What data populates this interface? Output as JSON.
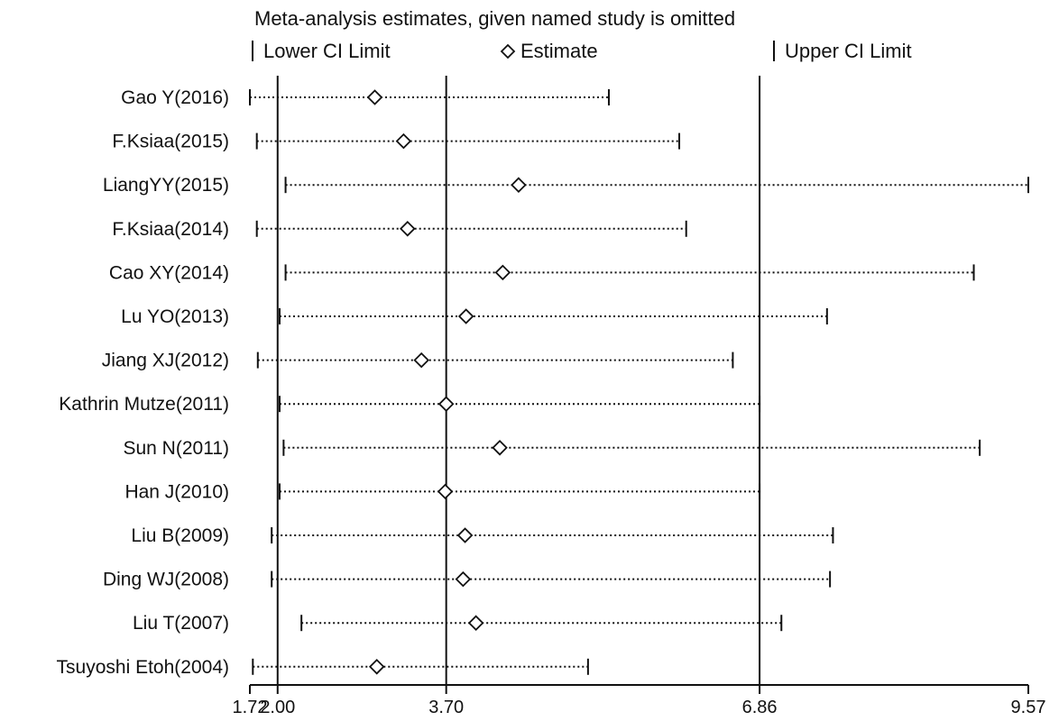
{
  "chart_data": {
    "type": "forest-sensitivity",
    "title": "Meta-analysis estimates, given named study is omitted",
    "legend": {
      "lower": "Lower CI Limit",
      "estimate": "Estimate",
      "upper": "Upper CI Limit"
    },
    "x_ticks": [
      {
        "value": 1.72,
        "label": "1.72"
      },
      {
        "value": 2.0,
        "label": "2.00"
      },
      {
        "value": 3.7,
        "label": "3.70"
      },
      {
        "value": 6.86,
        "label": "6.86"
      },
      {
        "value": 9.57,
        "label": "9.57"
      }
    ],
    "xlim": [
      1.72,
      9.57
    ],
    "reference_lines": [
      2.0,
      3.7,
      6.86
    ],
    "studies": [
      {
        "name": "Gao Y(2016)",
        "lower": 1.72,
        "estimate": 2.98,
        "upper": 5.34
      },
      {
        "name": "F.Ksiaa(2015)",
        "lower": 1.79,
        "estimate": 3.27,
        "upper": 6.05
      },
      {
        "name": "LiangYY(2015)",
        "lower": 2.08,
        "estimate": 4.43,
        "upper": 9.57
      },
      {
        "name": "F.Ksiaa(2014)",
        "lower": 1.79,
        "estimate": 3.31,
        "upper": 6.12
      },
      {
        "name": "Cao XY(2014)",
        "lower": 2.08,
        "estimate": 4.27,
        "upper": 9.02
      },
      {
        "name": "Lu YO(2013)",
        "lower": 2.02,
        "estimate": 3.9,
        "upper": 7.54
      },
      {
        "name": "Jiang XJ(2012)",
        "lower": 1.8,
        "estimate": 3.45,
        "upper": 6.59
      },
      {
        "name": "Kathrin Mutze(2011)",
        "lower": 2.02,
        "estimate": 3.7,
        "upper": 6.86
      },
      {
        "name": "Sun N(2011)",
        "lower": 2.06,
        "estimate": 4.24,
        "upper": 9.08
      },
      {
        "name": "Han J(2010)",
        "lower": 2.02,
        "estimate": 3.69,
        "upper": 6.86
      },
      {
        "name": "Liu B(2009)",
        "lower": 1.94,
        "estimate": 3.89,
        "upper": 7.6
      },
      {
        "name": "Ding WJ(2008)",
        "lower": 1.94,
        "estimate": 3.87,
        "upper": 7.57
      },
      {
        "name": "Liu T(2007)",
        "lower": 2.24,
        "estimate": 4.0,
        "upper": 7.08
      },
      {
        "name": "Tsuyoshi Etoh(2004)",
        "lower": 1.75,
        "estimate": 3.0,
        "upper": 5.13
      }
    ]
  }
}
